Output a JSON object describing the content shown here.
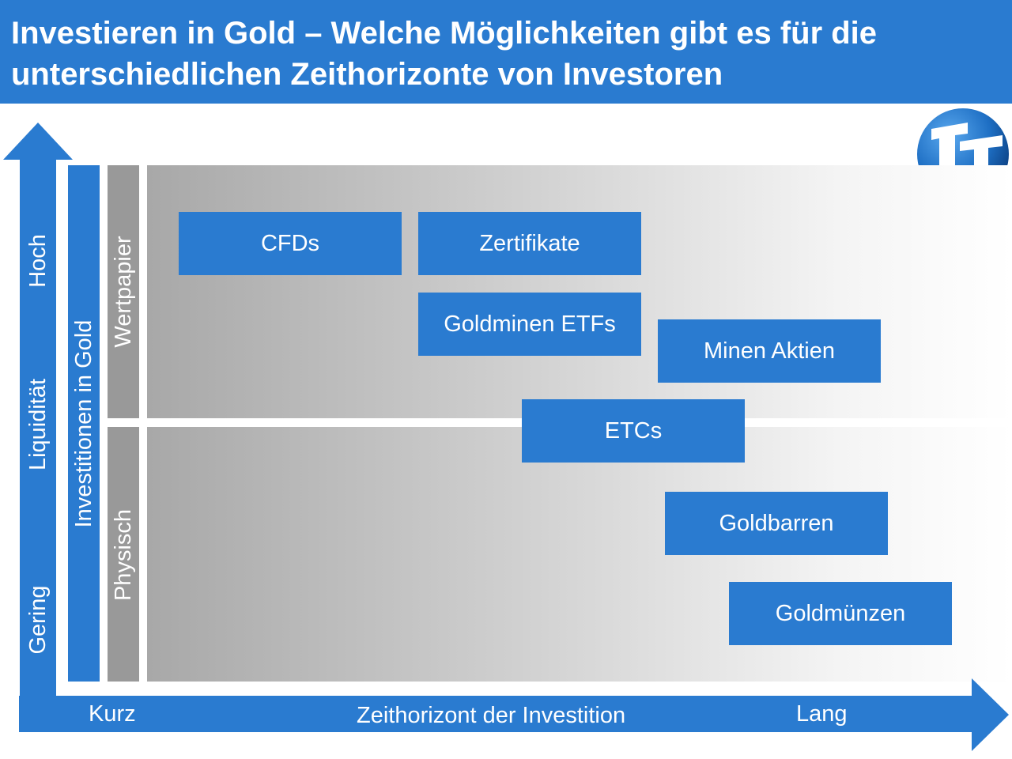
{
  "header": {
    "title": "Investieren in Gold – Welche Möglichkeiten gibt es für die unterschiedlichen Zeithorizonte von Investoren"
  },
  "colors": {
    "header_bg": "#2a7bd0",
    "box_bg": "#2a7bd0",
    "category_bar": "#999999",
    "text_on_blue": "#ffffff"
  },
  "y_axis": {
    "label": "Liquidität",
    "high": "Hoch",
    "low": "Gering"
  },
  "x_axis": {
    "label": "Zeithorizont der Investition",
    "short": "Kurz",
    "long": "Lang"
  },
  "groups": {
    "main": "Investitionen in Gold",
    "security": "Wertpapier",
    "physical": "Physisch"
  },
  "instruments": {
    "cfds": "CFDs",
    "zertifikate": "Zertifikate",
    "goldminen_etfs": "Goldminen ETFs",
    "minen_aktien": "Minen Aktien",
    "etcs": "ETCs",
    "goldbarren": "Goldbarren",
    "goldmuenzen": "Goldmünzen"
  },
  "logo": {
    "icon": "company-logo-icon"
  }
}
